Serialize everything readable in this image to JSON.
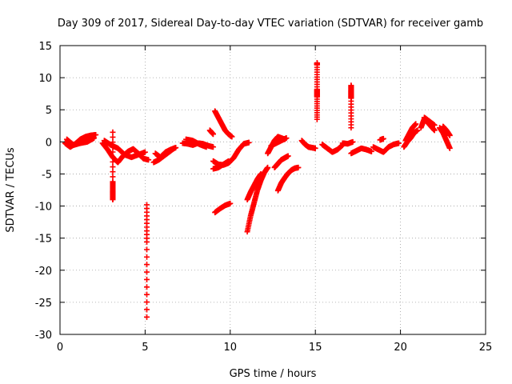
{
  "chart_data": {
    "type": "scatter",
    "title": "Day 309 of 2017, Sidereal Day-to-day VTEC variation (SDTVAR) for receiver gamb",
    "xlabel": "GPS time / hours",
    "ylabel": "SDTVAR / TECUs",
    "xlim": [
      0,
      25
    ],
    "ylim": [
      -30,
      15
    ],
    "xticks": [
      "0",
      "5",
      "10",
      "15",
      "20",
      "25"
    ],
    "yticks": [
      "15",
      "10",
      "5",
      "0",
      "-5",
      "-10",
      "-15",
      "-20",
      "-25",
      "-30"
    ],
    "grid": true,
    "marker": "plus",
    "color": "#ff0000",
    "series": [
      {
        "name": "SDTVAR",
        "segments": [
          {
            "x": [
              0.3,
              0.6,
              0.9,
              1.2,
              1.5,
              1.8,
              2.1
            ],
            "y": [
              -0.2,
              -0.8,
              -0.3,
              0.4,
              0.8,
              1.0,
              1.1
            ]
          },
          {
            "x": [
              0.4,
              0.8,
              1.2,
              1.6,
              2.0
            ],
            "y": [
              0.4,
              -0.5,
              -0.2,
              0.0,
              0.6
            ]
          },
          {
            "x": [
              2.5,
              2.8,
              3.1,
              3.4,
              3.7,
              4.0,
              4.3,
              4.6,
              4.9,
              5.2
            ],
            "y": [
              -0.2,
              -1.2,
              -2.4,
              -3.2,
              -2.2,
              -1.5,
              -1.1,
              -1.8,
              -2.6,
              -2.8
            ]
          },
          {
            "x": [
              2.6,
              3.0,
              3.4,
              3.8,
              4.2,
              4.6,
              5.0
            ],
            "y": [
              0.2,
              -0.5,
              -1.0,
              -2.0,
              -2.4,
              -2.0,
              -1.6
            ]
          },
          {
            "x": [
              3.1,
              3.1,
              3.1,
              3.1,
              3.1
            ],
            "y": [
              1.5,
              -6.2,
              -7.6,
              -8.2,
              -9.0
            ]
          },
          {
            "x": [
              5.1,
              5.1,
              5.1
            ],
            "y": [
              -9.8,
              -15.6,
              -27.3
            ]
          },
          {
            "x": [
              5.5,
              5.8,
              6.1,
              6.4,
              6.7
            ],
            "y": [
              -3.2,
              -2.8,
              -2.2,
              -1.6,
              -1.0
            ]
          },
          {
            "x": [
              5.6,
              5.9,
              6.2,
              6.5,
              6.8
            ],
            "y": [
              -1.8,
              -2.4,
              -1.6,
              -1.2,
              -0.9
            ]
          },
          {
            "x": [
              7.2,
              7.5,
              7.8,
              8.1,
              8.4,
              8.7,
              9.0
            ],
            "y": [
              -0.2,
              -0.3,
              -0.5,
              -0.2,
              -0.3,
              -0.6,
              -0.8
            ]
          },
          {
            "x": [
              7.4,
              7.8,
              8.2,
              8.6
            ],
            "y": [
              0.4,
              0.2,
              -0.4,
              -0.8
            ]
          },
          {
            "x": [
              9.1,
              9.3,
              9.5,
              9.7,
              9.9,
              10.1
            ],
            "y": [
              4.8,
              3.8,
              2.8,
              1.8,
              1.2,
              0.8
            ]
          },
          {
            "x": [
              8.8,
              9.0
            ],
            "y": [
              1.8,
              1.2
            ]
          },
          {
            "x": [
              9.0,
              9.3,
              9.6,
              9.9,
              10.2,
              10.5,
              10.8,
              11.1
            ],
            "y": [
              -3.0,
              -3.5,
              -3.6,
              -3.3,
              -2.5,
              -1.2,
              -0.3,
              -0.1
            ]
          },
          {
            "x": [
              9.0,
              9.3,
              9.6,
              9.9
            ],
            "y": [
              -4.2,
              -4.0,
              -3.5,
              -3.0
            ]
          },
          {
            "x": [
              9.1,
              9.4,
              9.7,
              10.0
            ],
            "y": [
              -11.0,
              -10.4,
              -9.9,
              -9.6
            ]
          },
          {
            "x": [
              11.0,
              11.2,
              11.4,
              11.6,
              11.8,
              12.0,
              12.2
            ],
            "y": [
              -14.0,
              -11.5,
              -9.5,
              -7.5,
              -6.0,
              -4.8,
              -4.0
            ]
          },
          {
            "x": [
              11.0,
              11.2,
              11.4,
              11.6,
              11.8
            ],
            "y": [
              -9.0,
              -7.8,
              -6.8,
              -5.8,
              -5.0
            ]
          },
          {
            "x": [
              12.2,
              12.4,
              12.6,
              12.8,
              13.0,
              13.2
            ],
            "y": [
              -1.8,
              -0.8,
              0.2,
              0.8,
              0.6,
              0.4
            ]
          },
          {
            "x": [
              12.4,
              12.7,
              13.0,
              13.3
            ],
            "y": [
              -0.6,
              -0.2,
              0.2,
              0.6
            ]
          },
          {
            "x": [
              12.8,
              13.0,
              13.2,
              13.4,
              13.6,
              13.8,
              14.0
            ],
            "y": [
              -7.6,
              -6.4,
              -5.6,
              -4.9,
              -4.4,
              -4.1,
              -4.0
            ]
          },
          {
            "x": [
              12.6,
              12.8,
              13.0,
              13.2,
              13.4
            ],
            "y": [
              -4.0,
              -3.4,
              -2.8,
              -2.5,
              -2.2
            ]
          },
          {
            "x": [
              14.2,
              14.4,
              14.6,
              14.8,
              15.0
            ],
            "y": [
              0.2,
              -0.4,
              -0.8,
              -0.9,
              -1.0
            ]
          },
          {
            "x": [
              15.1,
              15.1,
              15.1,
              15.1,
              15.1,
              15.1
            ],
            "y": [
              12.3,
              12.0,
              8.2,
              7.6,
              7.0,
              3.5
            ]
          },
          {
            "x": [
              15.4,
              15.7,
              16.0,
              16.3,
              16.6
            ],
            "y": [
              -0.4,
              -1.0,
              -1.6,
              -1.2,
              -0.5
            ]
          },
          {
            "x": [
              16.6,
              16.9,
              17.2
            ],
            "y": [
              -0.2,
              -0.3,
              0.0
            ]
          },
          {
            "x": [
              17.1,
              17.1,
              17.1,
              17.1,
              17.1
            ],
            "y": [
              8.8,
              8.0,
              7.4,
              6.8,
              2.2
            ]
          },
          {
            "x": [
              17.1,
              17.4,
              17.7,
              18.0,
              18.3
            ],
            "y": [
              -1.8,
              -1.4,
              -1.0,
              -1.2,
              -1.5
            ]
          },
          {
            "x": [
              18.4,
              18.7,
              19.0,
              19.3,
              19.6,
              19.9
            ],
            "y": [
              -0.8,
              -1.2,
              -1.6,
              -0.8,
              -0.4,
              -0.2
            ]
          },
          {
            "x": [
              18.8,
              19.0
            ],
            "y": [
              0.3,
              0.5
            ]
          },
          {
            "x": [
              20.3,
              20.5,
              20.7,
              20.9
            ],
            "y": [
              0.2,
              1.2,
              2.2,
              2.8
            ]
          },
          {
            "x": [
              20.2,
              20.4,
              20.6,
              20.8,
              21.0
            ],
            "y": [
              -0.8,
              0.0,
              0.6,
              1.4,
              1.8
            ]
          },
          {
            "x": [
              21.2,
              21.4,
              21.6,
              21.8,
              22.0
            ],
            "y": [
              2.2,
              3.6,
              3.0,
              2.4,
              1.8
            ]
          },
          {
            "x": [
              21.4,
              21.7,
              22.0
            ],
            "y": [
              3.8,
              3.2,
              2.6
            ]
          },
          {
            "x": [
              22.3,
              22.5,
              22.7,
              22.9
            ],
            "y": [
              2.2,
              1.4,
              0.2,
              -1.0
            ]
          },
          {
            "x": [
              22.5,
              22.7,
              22.9
            ],
            "y": [
              2.4,
              1.8,
              1.0
            ]
          }
        ]
      }
    ]
  }
}
